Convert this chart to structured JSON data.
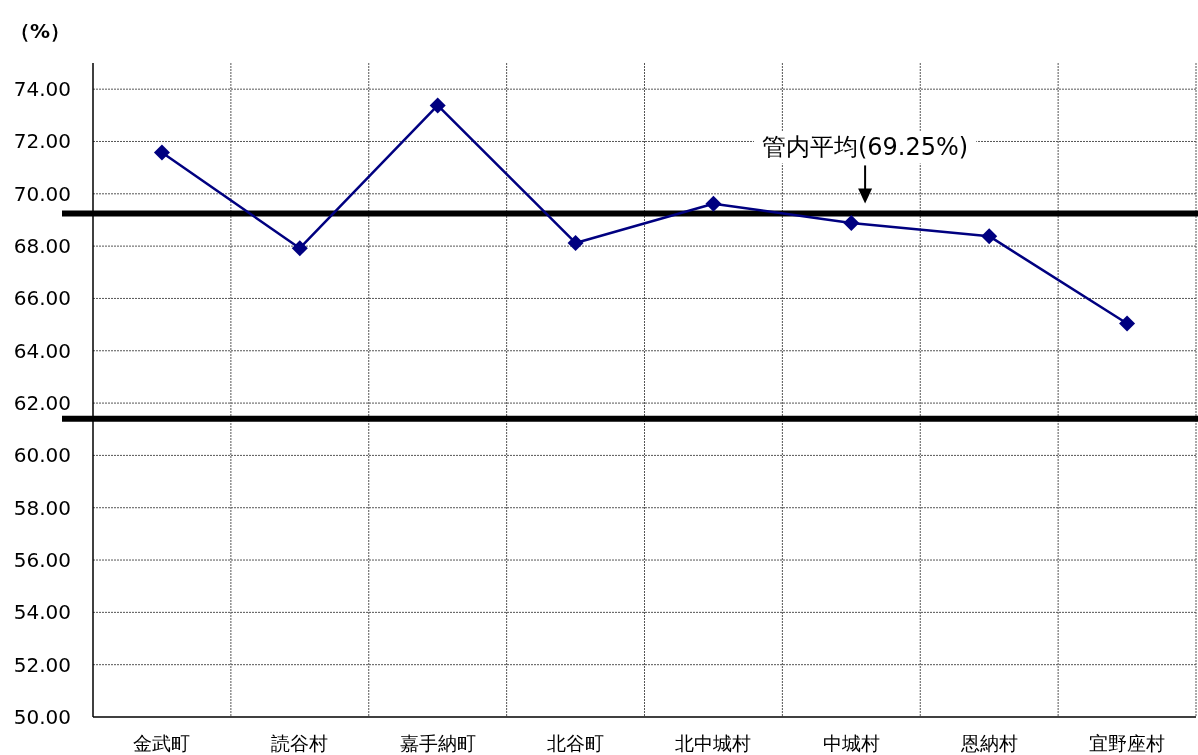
{
  "chart_data": {
    "type": "line",
    "ylabel": "（%）",
    "categories": [
      "金武町",
      "読谷村",
      "嘉手納町",
      "北谷町",
      "北中城村",
      "中城村",
      "恩納村",
      "宜野座村"
    ],
    "series": [
      {
        "color": "#000080",
        "values": [
          71.58,
          67.92,
          73.38,
          68.12,
          69.62,
          68.88,
          68.38,
          65.04
        ]
      }
    ],
    "ylim": [
      50,
      75
    ],
    "yticks": [
      {
        "value": 50,
        "label": "50.00"
      },
      {
        "value": 52,
        "label": "52.00"
      },
      {
        "value": 54,
        "label": "54.00"
      },
      {
        "value": 56,
        "label": "56.00"
      },
      {
        "value": 58,
        "label": "58.00"
      },
      {
        "value": 60,
        "label": "60.00"
      },
      {
        "value": 62,
        "label": "62.00"
      },
      {
        "value": 64,
        "label": "64.00"
      },
      {
        "value": 66,
        "label": "66.00"
      },
      {
        "value": 68,
        "label": "68.00"
      },
      {
        "value": 70,
        "label": "70.00"
      },
      {
        "value": 72,
        "label": "72.00"
      },
      {
        "value": 74,
        "label": "74.00"
      }
    ],
    "ref_lines": [
      {
        "axis": "y",
        "value": 69.25,
        "label": "管内平均(69.25%)",
        "color": "#000000"
      },
      {
        "axis": "y",
        "value": 61.4,
        "color": "#000000"
      }
    ],
    "grid": true,
    "marker": "diamond",
    "line_style": "solid"
  }
}
